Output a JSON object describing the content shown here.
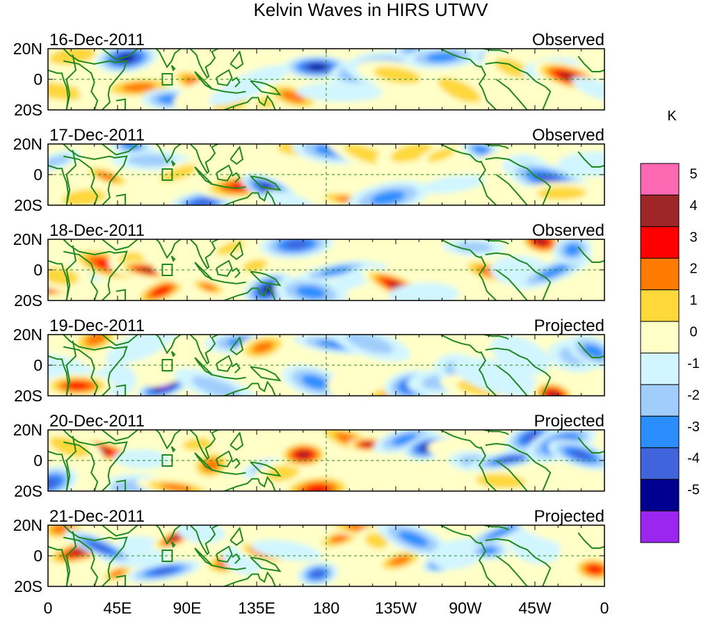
{
  "title": "Kelvin Waves in HIRS UTWV",
  "colorbar": {
    "unit": "K",
    "tick_labels": [
      "5",
      "4",
      "3",
      "2",
      "1",
      "0",
      "-1",
      "-2",
      "-3",
      "-4",
      "-5"
    ],
    "colors": [
      "#ff69b4",
      "#9e2626",
      "#ff0000",
      "#ff7a00",
      "#ffd83a",
      "#ffffc8",
      "#d2f6ff",
      "#a0cdfb",
      "#2b8eff",
      "#4064db",
      "#000090",
      "#9a26f0"
    ]
  },
  "chart_data": {
    "type": "heatmap",
    "title": "Kelvin Waves in HIRS UTWV",
    "xlabels": [
      "0",
      "45E",
      "90E",
      "135E",
      "180",
      "135W",
      "90W",
      "45W",
      "0"
    ],
    "x": [
      0,
      45,
      90,
      135,
      180,
      225,
      270,
      315,
      360
    ],
    "xlim": [
      0,
      360
    ],
    "ylabels": [
      "20N",
      "0",
      "20S"
    ],
    "ylim": [
      -20,
      20
    ],
    "value_unit": "K",
    "value_range": [
      -5.5,
      5.5
    ],
    "panels": [
      {
        "date": "16-Dec-2011",
        "status": "Observed"
      },
      {
        "date": "17-Dec-2011",
        "status": "Observed"
      },
      {
        "date": "18-Dec-2011",
        "status": "Observed"
      },
      {
        "date": "19-Dec-2011",
        "status": "Projected"
      },
      {
        "date": "20-Dec-2011",
        "status": "Projected"
      },
      {
        "date": "21-Dec-2011",
        "status": "Projected"
      }
    ]
  }
}
